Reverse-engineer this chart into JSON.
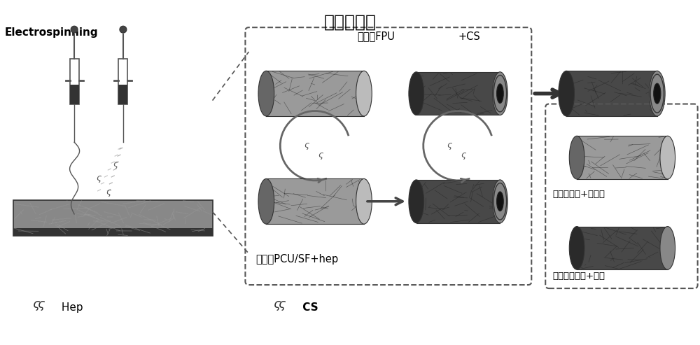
{
  "title": "实验室制备",
  "title_fontsize": 18,
  "bg_color": "#ffffff",
  "fig_width": 10.0,
  "fig_height": 4.93,
  "electrospinning_label": "Electrospinning",
  "hep_label": "Hep",
  "cs_label": "CS",
  "outer_label_1": "外层：FPU",
  "outer_label_2": "+CS",
  "inner_label": "内层：PCU/SF+hep",
  "inner_detail_label": "内层：亲水+抗血栓",
  "outer_detail_label": "外层：超疏水+止血"
}
